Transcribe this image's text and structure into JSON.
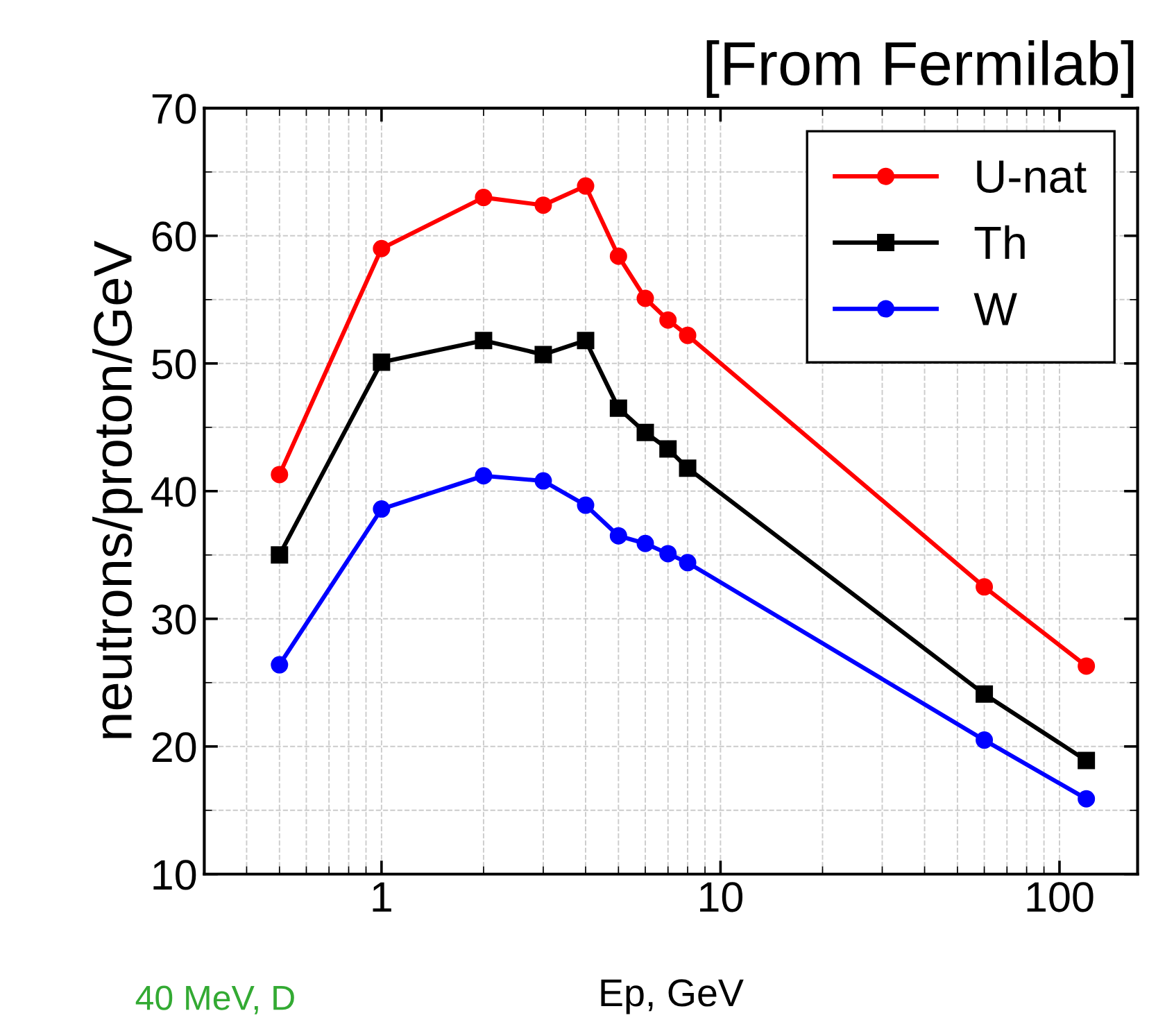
{
  "chart_data": {
    "type": "line",
    "title": "[From Fermilab]",
    "xlabel": "Ep, GeV",
    "ylabel": "neutrons/proton/GeV",
    "x": [
      0.5,
      1,
      2,
      3,
      4,
      5,
      6,
      7,
      8,
      60,
      120
    ],
    "series": [
      {
        "name": "U-nat",
        "color": "#ff0000",
        "marker": "circle",
        "values": [
          41.3,
          59.0,
          63.0,
          62.4,
          63.9,
          58.4,
          55.1,
          53.4,
          52.2,
          32.5,
          26.3
        ]
      },
      {
        "name": "Th",
        "color": "#000000",
        "marker": "square",
        "values": [
          35.0,
          50.1,
          51.8,
          50.7,
          51.8,
          46.5,
          44.6,
          43.3,
          41.8,
          24.1,
          18.9
        ]
      },
      {
        "name": "W",
        "color": "#0000ff",
        "marker": "circle",
        "values": [
          26.4,
          38.6,
          41.2,
          40.8,
          38.9,
          36.5,
          35.9,
          35.1,
          34.4,
          20.5,
          15.9
        ]
      }
    ],
    "log": "x",
    "xlim": [
      0.3,
      170
    ],
    "xticks": [
      1,
      10,
      100
    ],
    "ylim": [
      10,
      70
    ],
    "yticks": [
      10,
      20,
      30,
      40,
      50,
      60,
      70
    ],
    "grid": true,
    "legend": "top right",
    "annotations": [
      "40 MeV, D"
    ]
  }
}
